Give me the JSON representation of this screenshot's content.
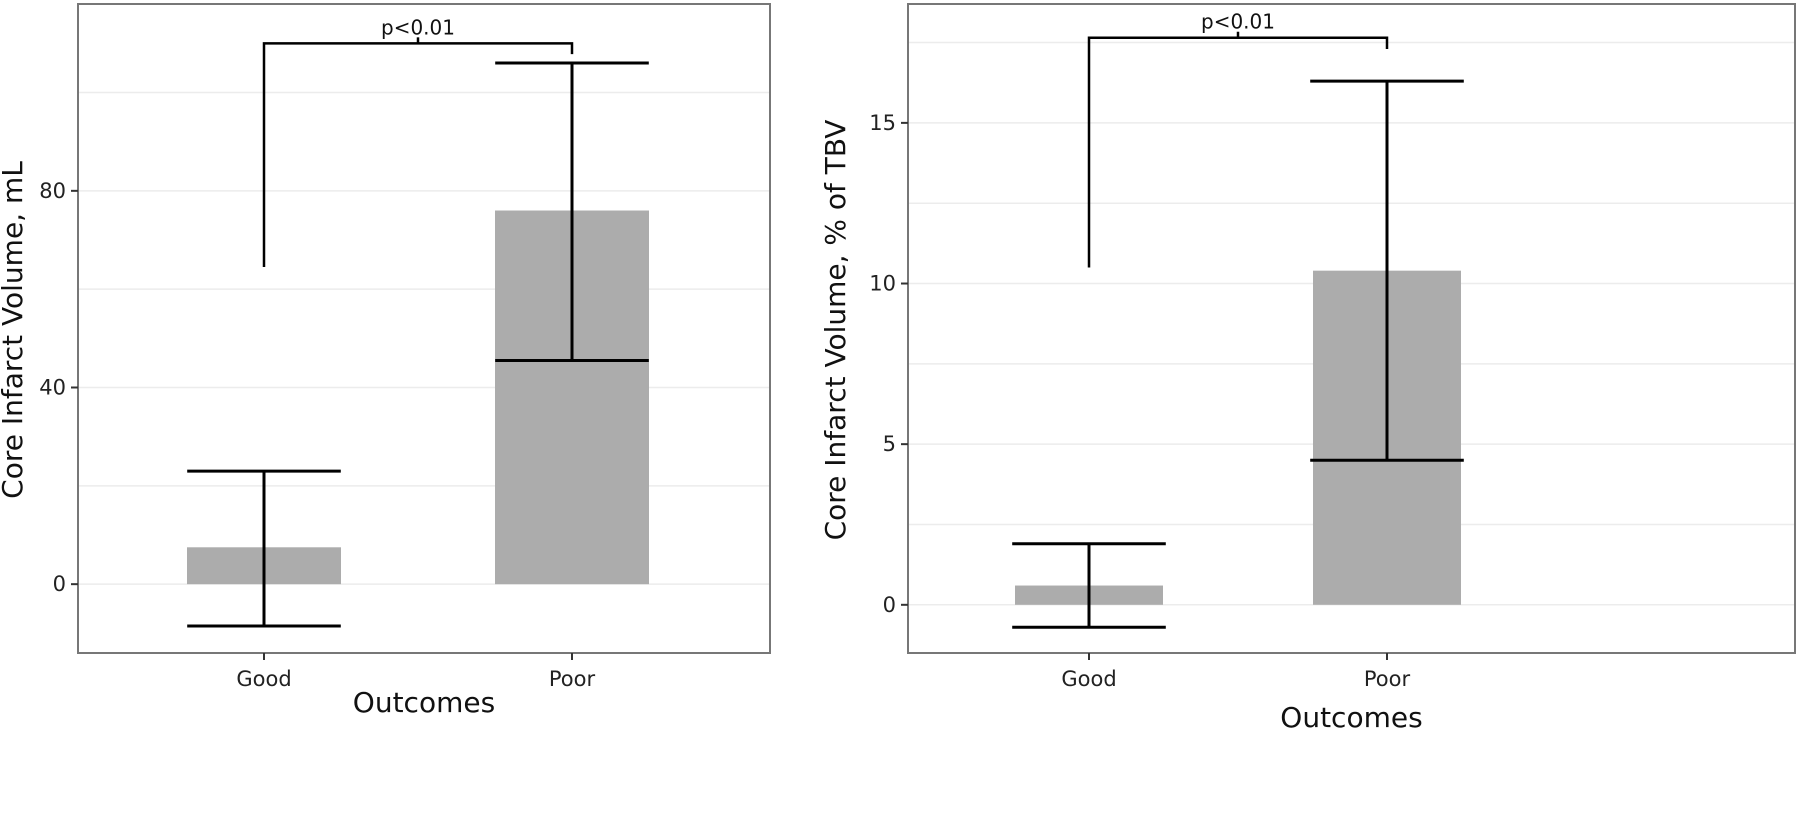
{
  "chart_data": [
    {
      "type": "bar",
      "title": "",
      "xlabel": "Outcomes",
      "ylabel": "Core Infarct Volume, mL",
      "categories": [
        "Good",
        "Poor"
      ],
      "values": [
        7.5,
        76
      ],
      "error_low": [
        -8.5,
        45.5
      ],
      "error_high": [
        23,
        106
      ],
      "ylim": [
        -14,
        118
      ],
      "yticks": [
        0,
        40,
        80
      ],
      "grid": true,
      "annotation": {
        "text": "p<0.01",
        "y_top": 110,
        "y_good": 64.5,
        "y_poor": 107.8
      }
    },
    {
      "type": "bar",
      "title": "",
      "xlabel": "Outcomes",
      "ylabel": "Core Infarct Volume, % of TBV",
      "categories": [
        "Good",
        "Poor"
      ],
      "values": [
        0.6,
        10.4
      ],
      "error_low": [
        -0.7,
        4.5
      ],
      "error_high": [
        1.9,
        16.3
      ],
      "ylim": [
        -1.5,
        18.7
      ],
      "yticks": [
        0,
        5,
        10,
        15
      ],
      "grid": true,
      "annotation": {
        "text": "p<0.01",
        "y_top": 17.65,
        "y_good": 10.5,
        "y_poor": 17.3
      }
    }
  ],
  "colors": {
    "bar": "#acacac",
    "grid": "#ececec",
    "border": "#777777",
    "errorbar": "#000000"
  }
}
